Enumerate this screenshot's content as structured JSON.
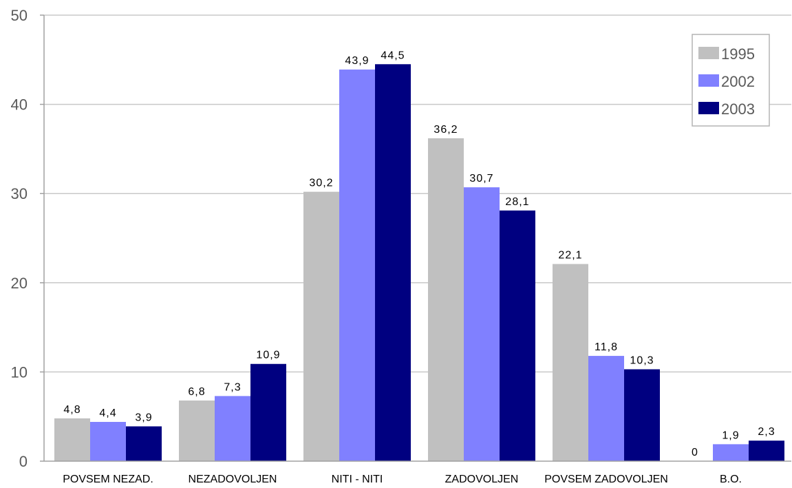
{
  "chart_data": {
    "type": "bar",
    "title": "",
    "xlabel": "",
    "ylabel": "",
    "categories": [
      "POVSEM NEZAD.",
      "NEZADOVOLJEN",
      "NITI - NITI",
      "ZADOVOLJEN",
      "POVSEM ZADOVOLJEN",
      "B.O."
    ],
    "series": [
      {
        "name": "1995",
        "color": "#c0c0c0",
        "values": [
          4.8,
          6.8,
          30.2,
          36.2,
          22.1,
          0
        ],
        "labels": [
          "4,8",
          "6,8",
          "30,2",
          "36,2",
          "22,1",
          "0"
        ]
      },
      {
        "name": "2002",
        "color": "#8080ff",
        "values": [
          4.4,
          7.3,
          43.9,
          30.7,
          11.8,
          1.9
        ],
        "labels": [
          "4,4",
          "7,3",
          "43,9",
          "30,7",
          "11,8",
          "1,9"
        ]
      },
      {
        "name": "2003",
        "color": "#000080",
        "values": [
          3.9,
          10.9,
          44.5,
          28.1,
          10.3,
          2.3
        ],
        "labels": [
          "3,9",
          "10,9",
          "44,5",
          "28,1",
          "10,3",
          "2,3"
        ]
      }
    ],
    "ylim": [
      0,
      50
    ],
    "yticks": [
      0,
      10,
      20,
      30,
      40,
      50
    ],
    "ytick_labels": [
      "0",
      "10",
      "20",
      "30",
      "40",
      "50"
    ],
    "grid": true,
    "legend": "top-right"
  }
}
